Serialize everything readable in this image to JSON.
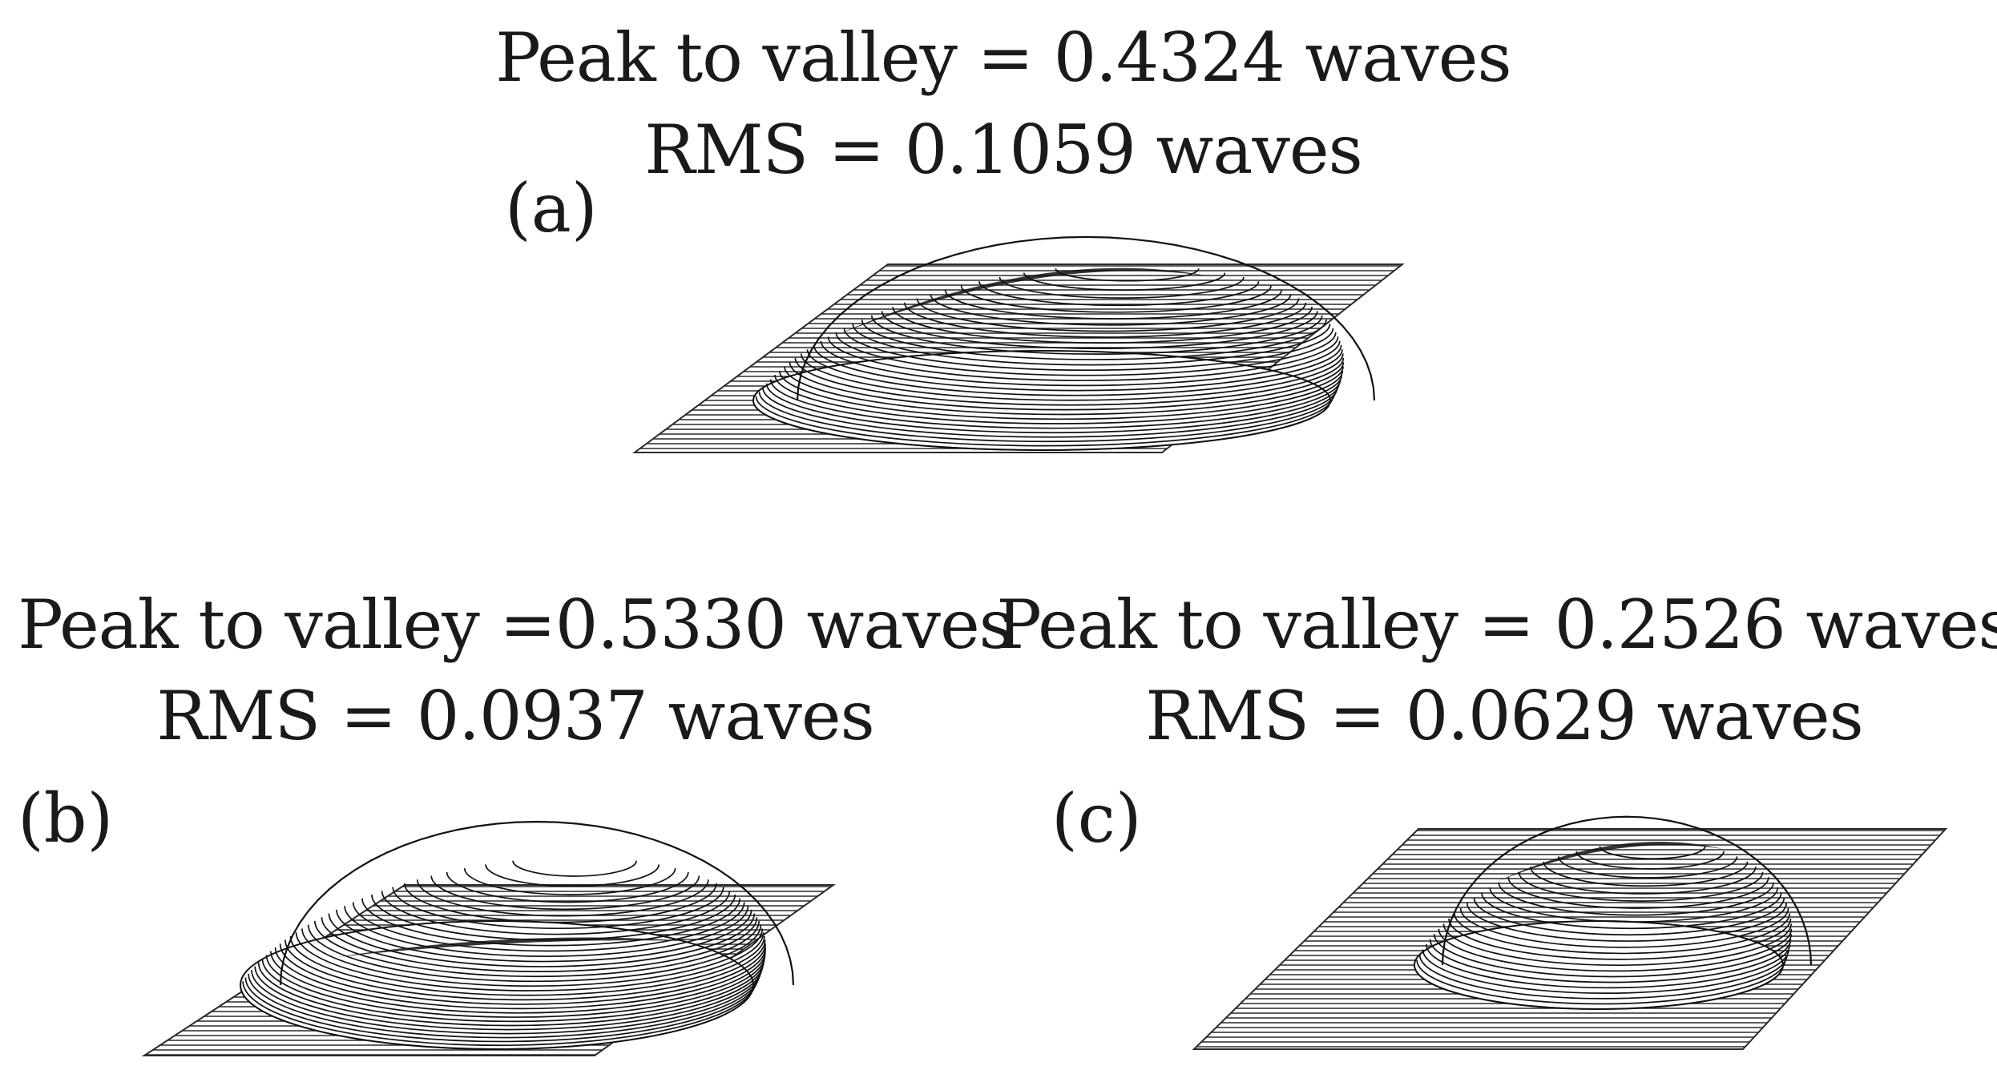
{
  "figure": {
    "panels": [
      {
        "id": "a",
        "label": "(a)",
        "peak_to_valley": "Peak to valley = 0.4324 waves",
        "rms": "RMS = 0.1059 waves"
      },
      {
        "id": "b",
        "label": "(b)",
        "peak_to_valley": "Peak to valley =0.5330 waves",
        "rms": "RMS = 0.0937 waves"
      },
      {
        "id": "c",
        "label": "(c)",
        "peak_to_valley": "Peak to valley = 0.2526 waves",
        "rms": "RMS = 0.0629 waves"
      }
    ]
  }
}
